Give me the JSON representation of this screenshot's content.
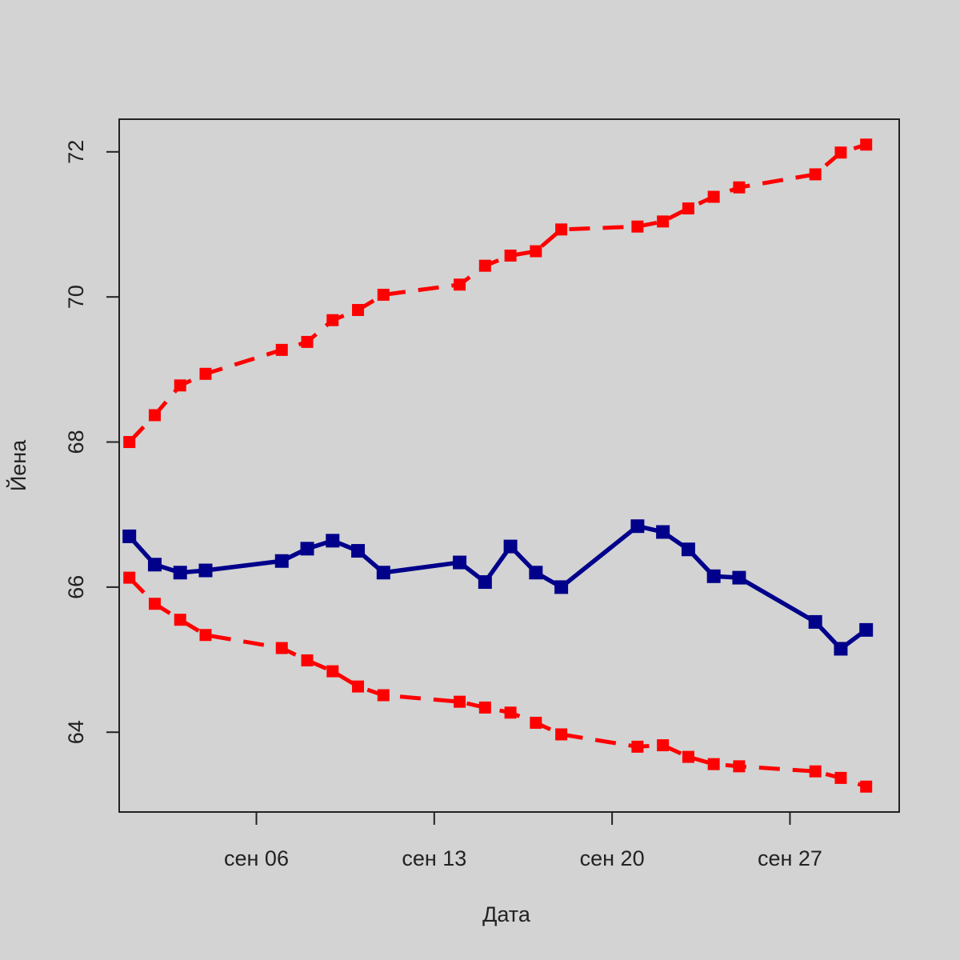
{
  "chart_data": {
    "type": "line",
    "title": "",
    "xlabel": "Дата",
    "ylabel": "Йена",
    "ylim": [
      62.9,
      72.45
    ],
    "xlim": [
      0.6,
      31.3
    ],
    "yticks": [
      {
        "value": 64,
        "label": "64"
      },
      {
        "value": 66,
        "label": "66"
      },
      {
        "value": 68,
        "label": "68"
      },
      {
        "value": 70,
        "label": "70"
      },
      {
        "value": 72,
        "label": "72"
      }
    ],
    "xticks": [
      {
        "value": 6,
        "label": "сен 06"
      },
      {
        "value": 13,
        "label": "сен 13"
      },
      {
        "value": 20,
        "label": "сен 20"
      },
      {
        "value": 27,
        "label": "сен 27"
      }
    ],
    "x": [
      1,
      2,
      3,
      4,
      7,
      8,
      9,
      10,
      11,
      14,
      15,
      16,
      17,
      18,
      21,
      22,
      23,
      24,
      25,
      28,
      29,
      30
    ],
    "series": [
      {
        "name": "upper",
        "color": "#ff0000",
        "style": "dashed",
        "values": [
          68.0,
          68.37,
          68.78,
          68.94,
          69.27,
          69.38,
          69.68,
          69.82,
          70.03,
          70.17,
          70.43,
          70.57,
          70.63,
          70.93,
          70.97,
          71.04,
          71.22,
          71.38,
          71.51,
          71.69,
          71.99,
          72.1
        ]
      },
      {
        "name": "rate",
        "color": "#00008b",
        "style": "solid",
        "values": [
          66.7,
          66.31,
          66.2,
          66.23,
          66.36,
          66.53,
          66.64,
          66.5,
          66.2,
          66.34,
          66.07,
          66.56,
          66.2,
          66.0,
          66.84,
          66.76,
          66.52,
          66.15,
          66.13,
          65.52,
          65.15,
          65.41
        ]
      },
      {
        "name": "lower",
        "color": "#ff0000",
        "style": "dashed",
        "values": [
          66.13,
          65.77,
          65.55,
          65.34,
          65.16,
          64.99,
          64.84,
          64.63,
          64.51,
          64.42,
          64.34,
          64.27,
          64.13,
          63.97,
          63.8,
          63.82,
          63.66,
          63.56,
          63.53,
          63.46,
          63.37,
          63.25
        ]
      }
    ],
    "grid": false,
    "legend": "none"
  }
}
